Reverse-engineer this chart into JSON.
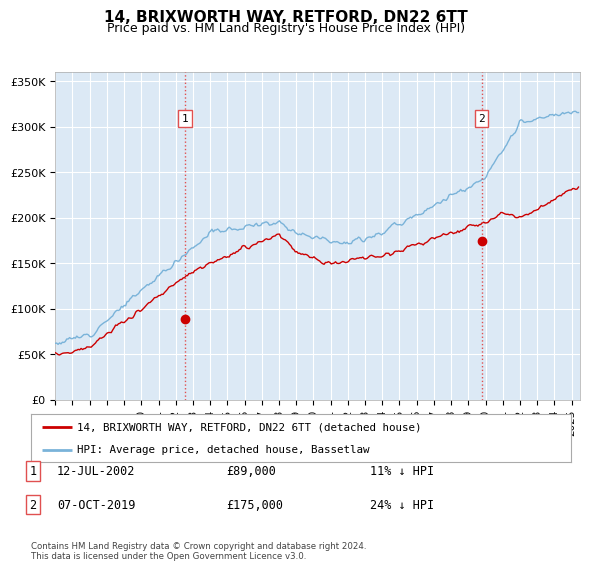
{
  "title": "14, BRIXWORTH WAY, RETFORD, DN22 6TT",
  "subtitle": "Price paid vs. HM Land Registry's House Price Index (HPI)",
  "hpi_label": "HPI: Average price, detached house, Bassetlaw",
  "property_label": "14, BRIXWORTH WAY, RETFORD, DN22 6TT (detached house)",
  "footnote": "Contains HM Land Registry data © Crown copyright and database right 2024.\nThis data is licensed under the Open Government Licence v3.0.",
  "sale1": {
    "date": "12-JUL-2002",
    "price": 89000,
    "label": "1",
    "note": "11% ↓ HPI"
  },
  "sale2": {
    "date": "07-OCT-2019",
    "price": 175000,
    "label": "2",
    "note": "24% ↓ HPI"
  },
  "sale1_x": 2002.53,
  "sale2_x": 2019.77,
  "sale1_y": 89000,
  "sale2_y": 175000,
  "ylim": [
    0,
    360000
  ],
  "xlim_start": 1995.0,
  "xlim_end": 2025.5,
  "bg_color": "#dce9f5",
  "grid_color": "#ffffff",
  "hpi_color": "#7ab3d9",
  "property_color": "#cc0000",
  "dashed_color": "#e05050",
  "title_fontsize": 11,
  "subtitle_fontsize": 9
}
